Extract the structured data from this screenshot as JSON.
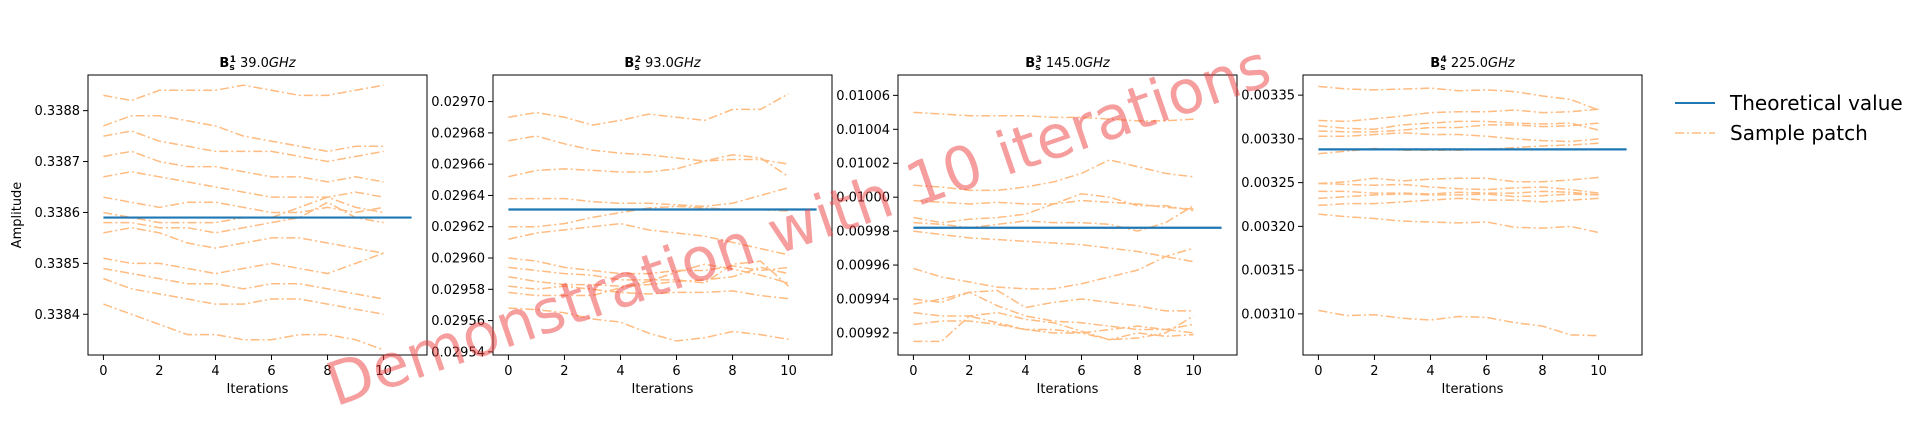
{
  "watermark": "Demonstration with 10 iterations",
  "legend": {
    "theoretical_label": "Theoretical value",
    "sample_label": "Sample patch"
  },
  "colors": {
    "theoretical": "#1f77b4",
    "sample": "#ffbb80"
  },
  "chart_data": [
    {
      "type": "line",
      "title_main": "B",
      "title_sub": "s",
      "title_sup": "1",
      "title_rest": "39.0",
      "title_unit": "GHz",
      "xlabel": "Iterations",
      "ylabel": "Amplitude",
      "xlim": [
        -0.55,
        11.55
      ],
      "ylim": [
        0.33832,
        0.33887
      ],
      "xticks": [
        "0",
        "2",
        "4",
        "6",
        "8",
        "10"
      ],
      "yticks": [
        "0.3384",
        "0.3385",
        "0.3386",
        "0.3387",
        "0.3388"
      ],
      "theoretical": {
        "x": [
          0,
          11
        ],
        "y": [
          0.33859,
          0.33859
        ]
      },
      "samples": [
        [
          0.33883,
          0.33882,
          0.33884,
          0.33884,
          0.33884,
          0.33885,
          0.33884,
          0.33883,
          0.33883,
          0.33884,
          0.33885
        ],
        [
          0.33877,
          0.33879,
          0.33879,
          0.33878,
          0.33877,
          0.33875,
          0.33874,
          0.33873,
          0.33872,
          0.33873,
          0.33873
        ],
        [
          0.33875,
          0.33876,
          0.33874,
          0.33873,
          0.33872,
          0.33872,
          0.33872,
          0.33871,
          0.3387,
          0.33871,
          0.33872
        ],
        [
          0.33871,
          0.33872,
          0.3387,
          0.33869,
          0.33869,
          0.33868,
          0.33867,
          0.33867,
          0.33866,
          0.33867,
          0.33866
        ],
        [
          0.33867,
          0.33868,
          0.33867,
          0.33866,
          0.33865,
          0.33864,
          0.33863,
          0.33863,
          0.33863,
          0.33864,
          0.33863
        ],
        [
          0.33863,
          0.33862,
          0.33861,
          0.33862,
          0.33862,
          0.33861,
          0.3386,
          0.3386,
          0.33861,
          0.3386,
          0.33861
        ],
        [
          0.3386,
          0.33859,
          0.33858,
          0.33858,
          0.33858,
          0.33859,
          0.33859,
          0.33861,
          0.33863,
          0.33861,
          0.3386
        ],
        [
          0.33858,
          0.33858,
          0.33857,
          0.33857,
          0.33856,
          0.33857,
          0.33858,
          0.33859,
          0.33862,
          0.33859,
          0.33858
        ],
        [
          0.33856,
          0.33857,
          0.33856,
          0.33854,
          0.33853,
          0.33854,
          0.33855,
          0.33855,
          0.33854,
          0.33853,
          0.33852
        ],
        [
          0.33851,
          0.3385,
          0.3385,
          0.33849,
          0.33848,
          0.33849,
          0.3385,
          0.33849,
          0.33848,
          0.3385,
          0.33852
        ],
        [
          0.33849,
          0.33848,
          0.33847,
          0.33846,
          0.33846,
          0.33845,
          0.33846,
          0.33846,
          0.33845,
          0.33844,
          0.33843
        ],
        [
          0.33847,
          0.33845,
          0.33844,
          0.33843,
          0.33842,
          0.33842,
          0.33843,
          0.33843,
          0.33842,
          0.33841,
          0.3384
        ],
        [
          0.33842,
          0.3384,
          0.33838,
          0.33836,
          0.33836,
          0.33835,
          0.33835,
          0.33836,
          0.33836,
          0.33835,
          0.33833
        ]
      ]
    },
    {
      "type": "line",
      "title_main": "B",
      "title_sub": "s",
      "title_sup": "2",
      "title_rest": "93.0",
      "title_unit": "GHz",
      "xlabel": "Iterations",
      "ylabel": "",
      "xlim": [
        -0.55,
        11.55
      ],
      "ylim": [
        0.029538,
        0.029717
      ],
      "xticks": [
        "0",
        "2",
        "4",
        "6",
        "8",
        "10"
      ],
      "yticks": [
        "0.02954",
        "0.02956",
        "0.02958",
        "0.02960",
        "0.02962",
        "0.02964",
        "0.02966",
        "0.02968",
        "0.02970"
      ],
      "theoretical": {
        "x": [
          0,
          11
        ],
        "y": [
          0.029631,
          0.029631
        ]
      },
      "samples": [
        [
          0.02969,
          0.029693,
          0.02969,
          0.029685,
          0.029688,
          0.029692,
          0.02969,
          0.029688,
          0.029695,
          0.029695,
          0.029705
        ],
        [
          0.029675,
          0.029678,
          0.029673,
          0.029669,
          0.029667,
          0.029666,
          0.029664,
          0.029662,
          0.029663,
          0.029663,
          0.02966
        ],
        [
          0.029652,
          0.029656,
          0.029657,
          0.029656,
          0.029655,
          0.029655,
          0.029657,
          0.029662,
          0.029666,
          0.029664,
          0.029652
        ],
        [
          0.029638,
          0.029638,
          0.029638,
          0.029636,
          0.029635,
          0.029635,
          0.029634,
          0.029633,
          0.029635,
          0.02964,
          0.029645
        ],
        [
          0.02962,
          0.02962,
          0.029622,
          0.029626,
          0.029629,
          0.029632,
          0.029633,
          0.029632,
          0.029631,
          0.029631,
          0.02963
        ],
        [
          0.029612,
          0.029616,
          0.029618,
          0.02962,
          0.029622,
          0.029618,
          0.029616,
          0.029614,
          0.02961,
          0.029606,
          0.029602
        ],
        [
          0.0296,
          0.029598,
          0.029594,
          0.029592,
          0.02959,
          0.02959,
          0.029592,
          0.029592,
          0.029595,
          0.029592,
          0.029594
        ],
        [
          0.029594,
          0.029592,
          0.02959,
          0.029589,
          0.029586,
          0.029586,
          0.029586,
          0.029584,
          0.029596,
          0.029598,
          0.029582
        ],
        [
          0.029588,
          0.029585,
          0.029583,
          0.029583,
          0.029582,
          0.029583,
          0.029585,
          0.029586,
          0.029588,
          0.029594,
          0.02959
        ],
        [
          0.029582,
          0.02958,
          0.029582,
          0.02958,
          0.029578,
          0.029577,
          0.029578,
          0.029578,
          0.029579,
          0.029576,
          0.029574
        ],
        [
          0.029578,
          0.029576,
          0.029576,
          0.029576,
          0.029581,
          0.029585,
          0.029591,
          0.029596,
          0.029593,
          0.029589,
          0.029584
        ],
        [
          0.029568,
          0.029567,
          0.029565,
          0.029561,
          0.029559,
          0.029552,
          0.029547,
          0.029549,
          0.029553,
          0.029551,
          0.029548
        ]
      ]
    },
    {
      "type": "line",
      "title_main": "B",
      "title_sub": "s",
      "title_sup": "3",
      "title_rest": "145.0",
      "title_unit": "GHz",
      "xlabel": "Iterations",
      "ylabel": "",
      "xlim": [
        -0.55,
        11.55
      ],
      "ylim": [
        0.009907,
        0.010072
      ],
      "xticks": [
        "0",
        "2",
        "4",
        "6",
        "8",
        "10"
      ],
      "yticks": [
        "0.00992",
        "0.00994",
        "0.00996",
        "0.00998",
        "0.01000",
        "0.01002",
        "0.01004",
        "0.01006"
      ],
      "theoretical": {
        "x": [
          0,
          11
        ],
        "y": [
          0.009982,
          0.009982
        ]
      },
      "samples": [
        [
          0.01005,
          0.010049,
          0.010048,
          0.010048,
          0.010048,
          0.010047,
          0.010047,
          0.010046,
          0.010045,
          0.010045,
          0.010046
        ],
        [
          0.010007,
          0.010006,
          0.010004,
          0.010004,
          0.010006,
          0.010009,
          0.010014,
          0.010022,
          0.010018,
          0.010014,
          0.010012
        ],
        [
          0.009998,
          0.009997,
          0.009996,
          0.009997,
          0.009996,
          0.009996,
          0.009998,
          0.009997,
          0.009996,
          0.009994,
          0.009993
        ],
        [
          0.009988,
          0.009985,
          0.009987,
          0.009988,
          0.00999,
          0.009996,
          0.010002,
          0.01,
          0.009995,
          0.009995,
          0.009992
        ],
        [
          0.009985,
          0.009984,
          0.009982,
          0.009984,
          0.009986,
          0.009985,
          0.009985,
          0.009984,
          0.00998,
          0.009985,
          0.009995
        ],
        [
          0.00998,
          0.009978,
          0.009976,
          0.009975,
          0.009974,
          0.009973,
          0.009972,
          0.00997,
          0.009968,
          0.009965,
          0.009962
        ],
        [
          0.009958,
          0.009953,
          0.00995,
          0.009947,
          0.009946,
          0.009946,
          0.009949,
          0.009953,
          0.009957,
          0.009965,
          0.00997
        ],
        [
          0.00994,
          0.009938,
          0.009944,
          0.009945,
          0.009935,
          0.009938,
          0.00994,
          0.009938,
          0.009936,
          0.009933,
          0.009933
        ],
        [
          0.009937,
          0.00994,
          0.009944,
          0.009936,
          0.00993,
          0.009927,
          0.009926,
          0.009924,
          0.009922,
          0.009922,
          0.009925
        ],
        [
          0.009932,
          0.00993,
          0.00993,
          0.009932,
          0.009928,
          0.009926,
          0.009921,
          0.009916,
          0.009917,
          0.00992,
          0.00993
        ],
        [
          0.009925,
          0.009927,
          0.009927,
          0.009925,
          0.009922,
          0.00992,
          0.00992,
          0.009922,
          0.009924,
          0.009922,
          0.00992
        ],
        [
          0.009915,
          0.009915,
          0.00993,
          0.009926,
          0.009922,
          0.009922,
          0.00992,
          0.009916,
          0.00992,
          0.009918,
          0.009919
        ]
      ]
    },
    {
      "type": "line",
      "title_main": "B",
      "title_sub": "s",
      "title_sup": "4",
      "title_rest": "225.0",
      "title_unit": "GHz",
      "xlabel": "Iterations",
      "ylabel": "",
      "xlim": [
        -0.55,
        11.55
      ],
      "ylim": [
        0.003053,
        0.003373
      ],
      "xticks": [
        "0",
        "2",
        "4",
        "6",
        "8",
        "10"
      ],
      "yticks": [
        "0.00310",
        "0.00315",
        "0.00320",
        "0.00325",
        "0.00330",
        "0.00335"
      ],
      "theoretical": {
        "x": [
          0,
          11
        ],
        "y": [
          0.003288,
          0.003288
        ]
      },
      "samples": [
        [
          0.00336,
          0.003357,
          0.003356,
          0.003357,
          0.003358,
          0.003355,
          0.003356,
          0.003354,
          0.003349,
          0.003345,
          0.003333
        ],
        [
          0.003321,
          0.00332,
          0.003323,
          0.003326,
          0.00333,
          0.003331,
          0.003331,
          0.003333,
          0.00333,
          0.003331,
          0.003334
        ],
        [
          0.003315,
          0.003312,
          0.003311,
          0.003316,
          0.003318,
          0.00332,
          0.00332,
          0.003318,
          0.003317,
          0.003318,
          0.00331
        ],
        [
          0.003309,
          0.003308,
          0.003308,
          0.00331,
          0.003313,
          0.003313,
          0.003316,
          0.003316,
          0.003314,
          0.003315,
          0.003318
        ],
        [
          0.003303,
          0.003303,
          0.003305,
          0.003307,
          0.003305,
          0.003305,
          0.003303,
          0.0033,
          0.003298,
          0.003297,
          0.0033
        ],
        [
          0.003283,
          0.003286,
          0.003289,
          0.003287,
          0.003287,
          0.003287,
          0.003288,
          0.00329,
          0.003292,
          0.003293,
          0.003295
        ],
        [
          0.003249,
          0.003251,
          0.003255,
          0.003252,
          0.003254,
          0.003255,
          0.003255,
          0.003251,
          0.003251,
          0.003253,
          0.003256
        ],
        [
          0.003249,
          0.003248,
          0.003247,
          0.003248,
          0.003245,
          0.003243,
          0.003242,
          0.003244,
          0.003245,
          0.003242,
          0.003238
        ],
        [
          0.00324,
          0.00324,
          0.003238,
          0.003238,
          0.003237,
          0.003239,
          0.003238,
          0.003238,
          0.00324,
          0.003239,
          0.003236
        ],
        [
          0.003232,
          0.003234,
          0.003236,
          0.003237,
          0.003236,
          0.003236,
          0.003237,
          0.003234,
          0.003235,
          0.003237,
          0.003236
        ],
        [
          0.003224,
          0.003226,
          0.003226,
          0.003228,
          0.00323,
          0.003232,
          0.00323,
          0.00323,
          0.003228,
          0.00323,
          0.003232
        ],
        [
          0.003214,
          0.003211,
          0.003209,
          0.003206,
          0.003205,
          0.003204,
          0.003205,
          0.003199,
          0.003198,
          0.0032,
          0.003193
        ],
        [
          0.003104,
          0.003098,
          0.003099,
          0.003095,
          0.003093,
          0.003097,
          0.003096,
          0.00309,
          0.003086,
          0.003076,
          0.003075
        ]
      ]
    }
  ]
}
